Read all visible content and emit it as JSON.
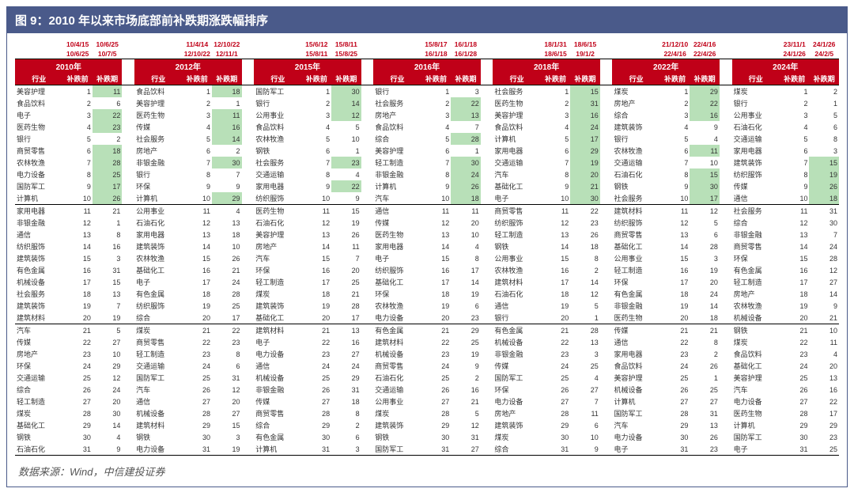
{
  "title": "图 9：2010 年以来市场底部前补跌期涨跌幅排序",
  "source": "数据来源：Wind，中信建投证券",
  "headers": [
    "行业",
    "补跌前",
    "补跌期"
  ],
  "years": [
    {
      "label": "2010年",
      "dates": [
        [
          "10/4/15",
          "10/6/25"
        ],
        [
          "10/6/25",
          "10/7/5"
        ]
      ]
    },
    {
      "label": "2012年",
      "dates": [
        [
          "11/4/14",
          "12/10/22"
        ],
        [
          "12/10/22",
          "12/11/1"
        ]
      ]
    },
    {
      "label": "2015年",
      "dates": [
        [
          "15/6/12",
          "15/8/11"
        ],
        [
          "15/8/11",
          "15/8/25"
        ]
      ]
    },
    {
      "label": "2016年",
      "dates": [
        [
          "15/8/17",
          "16/1/18"
        ],
        [
          "16/1/18",
          "16/1/28"
        ]
      ]
    },
    {
      "label": "2018年",
      "dates": [
        [
          "18/1/31",
          "18/6/15"
        ],
        [
          "18/6/15",
          "19/1/2"
        ]
      ]
    },
    {
      "label": "2022年",
      "dates": [
        [
          "21/12/10",
          "22/4/16"
        ],
        [
          "22/4/16",
          "22/4/26"
        ]
      ]
    },
    {
      "label": "2024年",
      "dates": [
        [
          "23/11/1",
          "24/1/26"
        ],
        [
          "24/1/26",
          "24/2/5"
        ]
      ]
    }
  ],
  "rows": [
    [
      [
        "美容护理",
        1,
        11,
        1
      ],
      [
        "食品饮料",
        1,
        18,
        1
      ],
      [
        "国防军工",
        1,
        30,
        1
      ],
      [
        "银行",
        1,
        3,
        0
      ],
      [
        "社会服务",
        1,
        15,
        1
      ],
      [
        "煤炭",
        1,
        29,
        1
      ],
      [
        "煤炭",
        1,
        2,
        0
      ]
    ],
    [
      [
        "食品饮料",
        2,
        6,
        0
      ],
      [
        "美容护理",
        2,
        1,
        0
      ],
      [
        "银行",
        2,
        14,
        1
      ],
      [
        "社会服务",
        2,
        22,
        1
      ],
      [
        "医药生物",
        2,
        31,
        1
      ],
      [
        "房地产",
        2,
        22,
        1
      ],
      [
        "银行",
        2,
        1,
        0
      ]
    ],
    [
      [
        "电子",
        3,
        22,
        1
      ],
      [
        "医药生物",
        3,
        11,
        1
      ],
      [
        "公用事业",
        3,
        12,
        1
      ],
      [
        "房地产",
        3,
        13,
        1
      ],
      [
        "美容护理",
        3,
        16,
        1
      ],
      [
        "综合",
        3,
        16,
        1
      ],
      [
        "公用事业",
        3,
        5,
        0
      ]
    ],
    [
      [
        "医药生物",
        4,
        23,
        1
      ],
      [
        "传媒",
        4,
        16,
        1
      ],
      [
        "食品饮料",
        4,
        5,
        0
      ],
      [
        "食品饮料",
        4,
        7,
        0
      ],
      [
        "食品饮料",
        4,
        24,
        1
      ],
      [
        "建筑装饰",
        4,
        9,
        0
      ],
      [
        "石油石化",
        4,
        6,
        0
      ]
    ],
    [
      [
        "银行",
        5,
        2,
        0
      ],
      [
        "社会服务",
        5,
        14,
        1
      ],
      [
        "农林牧渔",
        5,
        10,
        0
      ],
      [
        "综合",
        5,
        28,
        1
      ],
      [
        "计算机",
        5,
        17,
        1
      ],
      [
        "银行",
        5,
        4,
        0
      ],
      [
        "交通运输",
        5,
        8,
        0
      ]
    ],
    [
      [
        "商贸零售",
        6,
        18,
        1
      ],
      [
        "房地产",
        6,
        2,
        0
      ],
      [
        "钢铁",
        6,
        1,
        0
      ],
      [
        "美容护理",
        6,
        1,
        0
      ],
      [
        "家用电器",
        6,
        29,
        1
      ],
      [
        "农林牧渔",
        6,
        11,
        1
      ],
      [
        "家用电器",
        6,
        3,
        0
      ]
    ],
    [
      [
        "农林牧渔",
        7,
        28,
        1
      ],
      [
        "非银金融",
        7,
        30,
        1
      ],
      [
        "社会服务",
        7,
        23,
        1
      ],
      [
        "轻工制造",
        7,
        30,
        1
      ],
      [
        "交通运输",
        7,
        19,
        1
      ],
      [
        "交通运输",
        7,
        10,
        0
      ],
      [
        "建筑装饰",
        7,
        15,
        1
      ]
    ],
    [
      [
        "电力设备",
        8,
        25,
        1
      ],
      [
        "银行",
        8,
        7,
        0
      ],
      [
        "交通运输",
        8,
        4,
        0
      ],
      [
        "非银金融",
        8,
        24,
        1
      ],
      [
        "汽车",
        8,
        20,
        1
      ],
      [
        "石油石化",
        8,
        15,
        1
      ],
      [
        "纺织服饰",
        8,
        19,
        1
      ]
    ],
    [
      [
        "国防军工",
        9,
        17,
        1
      ],
      [
        "环保",
        9,
        9,
        0
      ],
      [
        "家用电器",
        9,
        22,
        1
      ],
      [
        "计算机",
        9,
        26,
        1
      ],
      [
        "基础化工",
        9,
        21,
        1
      ],
      [
        "钢铁",
        9,
        30,
        1
      ],
      [
        "传媒",
        9,
        26,
        1
      ]
    ],
    [
      [
        "计算机",
        10,
        26,
        1
      ],
      [
        "计算机",
        10,
        29,
        1
      ],
      [
        "纺织服饰",
        10,
        9,
        0
      ],
      [
        "汽车",
        10,
        18,
        1
      ],
      [
        "电子",
        10,
        30,
        1
      ],
      [
        "社会服务",
        10,
        17,
        1
      ],
      [
        "通信",
        10,
        18,
        1
      ]
    ],
    [
      [
        "家用电器",
        11,
        21,
        0
      ],
      [
        "公用事业",
        11,
        4,
        0
      ],
      [
        "医药生物",
        11,
        15,
        0
      ],
      [
        "通信",
        11,
        11,
        0
      ],
      [
        "商贸零售",
        11,
        22,
        0
      ],
      [
        "建筑材料",
        11,
        12,
        0
      ],
      [
        "社会服务",
        11,
        31,
        0
      ]
    ],
    [
      [
        "非银金融",
        12,
        1,
        0
      ],
      [
        "石油石化",
        12,
        13,
        0
      ],
      [
        "石油石化",
        12,
        19,
        0
      ],
      [
        "传媒",
        12,
        20,
        0
      ],
      [
        "纺织服饰",
        12,
        23,
        0
      ],
      [
        "纺织服饰",
        12,
        5,
        0
      ],
      [
        "综合",
        12,
        30,
        0
      ]
    ],
    [
      [
        "通信",
        13,
        8,
        0
      ],
      [
        "家用电器",
        13,
        18,
        0
      ],
      [
        "美容护理",
        13,
        26,
        0
      ],
      [
        "医药生物",
        13,
        10,
        0
      ],
      [
        "轻工制造",
        13,
        26,
        0
      ],
      [
        "商贸零售",
        13,
        6,
        0
      ],
      [
        "非银金融",
        13,
        7,
        0
      ]
    ],
    [
      [
        "纺织服饰",
        14,
        16,
        0
      ],
      [
        "建筑装饰",
        14,
        10,
        0
      ],
      [
        "房地产",
        14,
        11,
        0
      ],
      [
        "家用电器",
        14,
        4,
        0
      ],
      [
        "钢铁",
        14,
        18,
        0
      ],
      [
        "基础化工",
        14,
        28,
        0
      ],
      [
        "商贸零售",
        14,
        24,
        0
      ]
    ],
    [
      [
        "建筑装饰",
        15,
        3,
        0
      ],
      [
        "农林牧渔",
        15,
        26,
        0
      ],
      [
        "汽车",
        15,
        7,
        0
      ],
      [
        "电子",
        15,
        8,
        0
      ],
      [
        "公用事业",
        15,
        8,
        0
      ],
      [
        "公用事业",
        15,
        3,
        0
      ],
      [
        "环保",
        15,
        28,
        0
      ]
    ],
    [
      [
        "有色金属",
        16,
        31,
        0
      ],
      [
        "基础化工",
        16,
        21,
        0
      ],
      [
        "环保",
        16,
        20,
        0
      ],
      [
        "纺织服饰",
        16,
        17,
        0
      ],
      [
        "农林牧渔",
        16,
        2,
        0
      ],
      [
        "轻工制造",
        16,
        19,
        0
      ],
      [
        "有色金属",
        16,
        12,
        0
      ]
    ],
    [
      [
        "机械设备",
        17,
        15,
        0
      ],
      [
        "电子",
        17,
        24,
        0
      ],
      [
        "轻工制造",
        17,
        25,
        0
      ],
      [
        "基础化工",
        17,
        14,
        0
      ],
      [
        "建筑材料",
        17,
        14,
        0
      ],
      [
        "环保",
        17,
        20,
        0
      ],
      [
        "轻工制造",
        17,
        27,
        0
      ]
    ],
    [
      [
        "社会服务",
        18,
        13,
        0
      ],
      [
        "有色金属",
        18,
        28,
        0
      ],
      [
        "煤炭",
        18,
        21,
        0
      ],
      [
        "环保",
        18,
        19,
        0
      ],
      [
        "石油石化",
        18,
        12,
        0
      ],
      [
        "有色金属",
        18,
        24,
        0
      ],
      [
        "房地产",
        18,
        14,
        0
      ]
    ],
    [
      [
        "建筑装饰",
        19,
        7,
        0
      ],
      [
        "纺织服饰",
        19,
        25,
        0
      ],
      [
        "建筑装饰",
        19,
        28,
        0
      ],
      [
        "农林牧渔",
        19,
        6,
        0
      ],
      [
        "通信",
        19,
        5,
        0
      ],
      [
        "非银金融",
        19,
        14,
        0
      ],
      [
        "农林牧渔",
        19,
        9,
        0
      ]
    ],
    [
      [
        "建筑材料",
        20,
        19,
        0
      ],
      [
        "综合",
        20,
        17,
        0
      ],
      [
        "基础化工",
        20,
        17,
        0
      ],
      [
        "电力设备",
        20,
        23,
        0
      ],
      [
        "银行",
        20,
        1,
        0
      ],
      [
        "医药生物",
        20,
        18,
        0
      ],
      [
        "机械设备",
        20,
        21,
        0
      ]
    ],
    [
      [
        "汽车",
        21,
        5,
        0
      ],
      [
        "煤炭",
        21,
        22,
        0
      ],
      [
        "建筑材料",
        21,
        13,
        0
      ],
      [
        "有色金属",
        21,
        29,
        0
      ],
      [
        "有色金属",
        21,
        28,
        0
      ],
      [
        "传媒",
        21,
        21,
        0
      ],
      [
        "钢铁",
        21,
        10,
        0
      ]
    ],
    [
      [
        "传媒",
        22,
        27,
        0
      ],
      [
        "商贸零售",
        22,
        23,
        0
      ],
      [
        "电子",
        22,
        16,
        0
      ],
      [
        "建筑材料",
        22,
        25,
        0
      ],
      [
        "机械设备",
        22,
        13,
        0
      ],
      [
        "通信",
        22,
        8,
        0
      ],
      [
        "煤炭",
        22,
        11,
        0
      ]
    ],
    [
      [
        "房地产",
        23,
        10,
        0
      ],
      [
        "轻工制造",
        23,
        8,
        0
      ],
      [
        "电力设备",
        23,
        27,
        0
      ],
      [
        "机械设备",
        23,
        19,
        0
      ],
      [
        "非银金融",
        23,
        3,
        0
      ],
      [
        "家用电器",
        23,
        2,
        0
      ],
      [
        "食品饮料",
        23,
        4,
        0
      ]
    ],
    [
      [
        "环保",
        24,
        29,
        0
      ],
      [
        "交通运输",
        24,
        6,
        0
      ],
      [
        "通信",
        24,
        24,
        0
      ],
      [
        "商贸零售",
        24,
        9,
        0
      ],
      [
        "传媒",
        24,
        25,
        0
      ],
      [
        "食品饮料",
        24,
        26,
        0
      ],
      [
        "基础化工",
        24,
        20,
        0
      ]
    ],
    [
      [
        "交通运输",
        25,
        12,
        0
      ],
      [
        "国防军工",
        25,
        31,
        0
      ],
      [
        "机械设备",
        25,
        29,
        0
      ],
      [
        "石油石化",
        25,
        2,
        0
      ],
      [
        "国防军工",
        25,
        4,
        0
      ],
      [
        "美容护理",
        25,
        1,
        0
      ],
      [
        "美容护理",
        25,
        13,
        0
      ]
    ],
    [
      [
        "综合",
        26,
        24,
        0
      ],
      [
        "汽车",
        26,
        12,
        0
      ],
      [
        "非银金融",
        26,
        31,
        0
      ],
      [
        "交通运输",
        26,
        16,
        0
      ],
      [
        "环保",
        26,
        27,
        0
      ],
      [
        "机械设备",
        26,
        25,
        0
      ],
      [
        "汽车",
        26,
        16,
        0
      ]
    ],
    [
      [
        "轻工制造",
        27,
        20,
        0
      ],
      [
        "通信",
        27,
        20,
        0
      ],
      [
        "传媒",
        27,
        18,
        0
      ],
      [
        "公用事业",
        27,
        21,
        0
      ],
      [
        "电力设备",
        27,
        7,
        0
      ],
      [
        "计算机",
        27,
        27,
        0
      ],
      [
        "电力设备",
        27,
        22,
        0
      ]
    ],
    [
      [
        "煤炭",
        28,
        30,
        0
      ],
      [
        "机械设备",
        28,
        27,
        0
      ],
      [
        "商贸零售",
        28,
        8,
        0
      ],
      [
        "煤炭",
        28,
        5,
        0
      ],
      [
        "房地产",
        28,
        11,
        0
      ],
      [
        "国防军工",
        28,
        31,
        0
      ],
      [
        "医药生物",
        28,
        17,
        0
      ]
    ],
    [
      [
        "基础化工",
        29,
        14,
        0
      ],
      [
        "建筑材料",
        29,
        15,
        0
      ],
      [
        "综合",
        29,
        2,
        0
      ],
      [
        "建筑装饰",
        29,
        12,
        0
      ],
      [
        "建筑装饰",
        29,
        6,
        0
      ],
      [
        "汽车",
        29,
        13,
        0
      ],
      [
        "计算机",
        29,
        29,
        0
      ]
    ],
    [
      [
        "钢铁",
        30,
        4,
        0
      ],
      [
        "钢铁",
        30,
        3,
        0
      ],
      [
        "有色金属",
        30,
        6,
        0
      ],
      [
        "钢铁",
        30,
        31,
        0
      ],
      [
        "煤炭",
        30,
        10,
        0
      ],
      [
        "电力设备",
        30,
        26,
        0
      ],
      [
        "国防军工",
        30,
        23,
        0
      ]
    ],
    [
      [
        "石油石化",
        31,
        9,
        0
      ],
      [
        "电力设备",
        31,
        19,
        0
      ],
      [
        "计算机",
        31,
        3,
        0
      ],
      [
        "国防军工",
        31,
        27,
        0
      ],
      [
        "综合",
        31,
        9,
        0
      ],
      [
        "电子",
        31,
        23,
        0
      ],
      [
        "电子",
        31,
        25,
        0
      ]
    ]
  ]
}
